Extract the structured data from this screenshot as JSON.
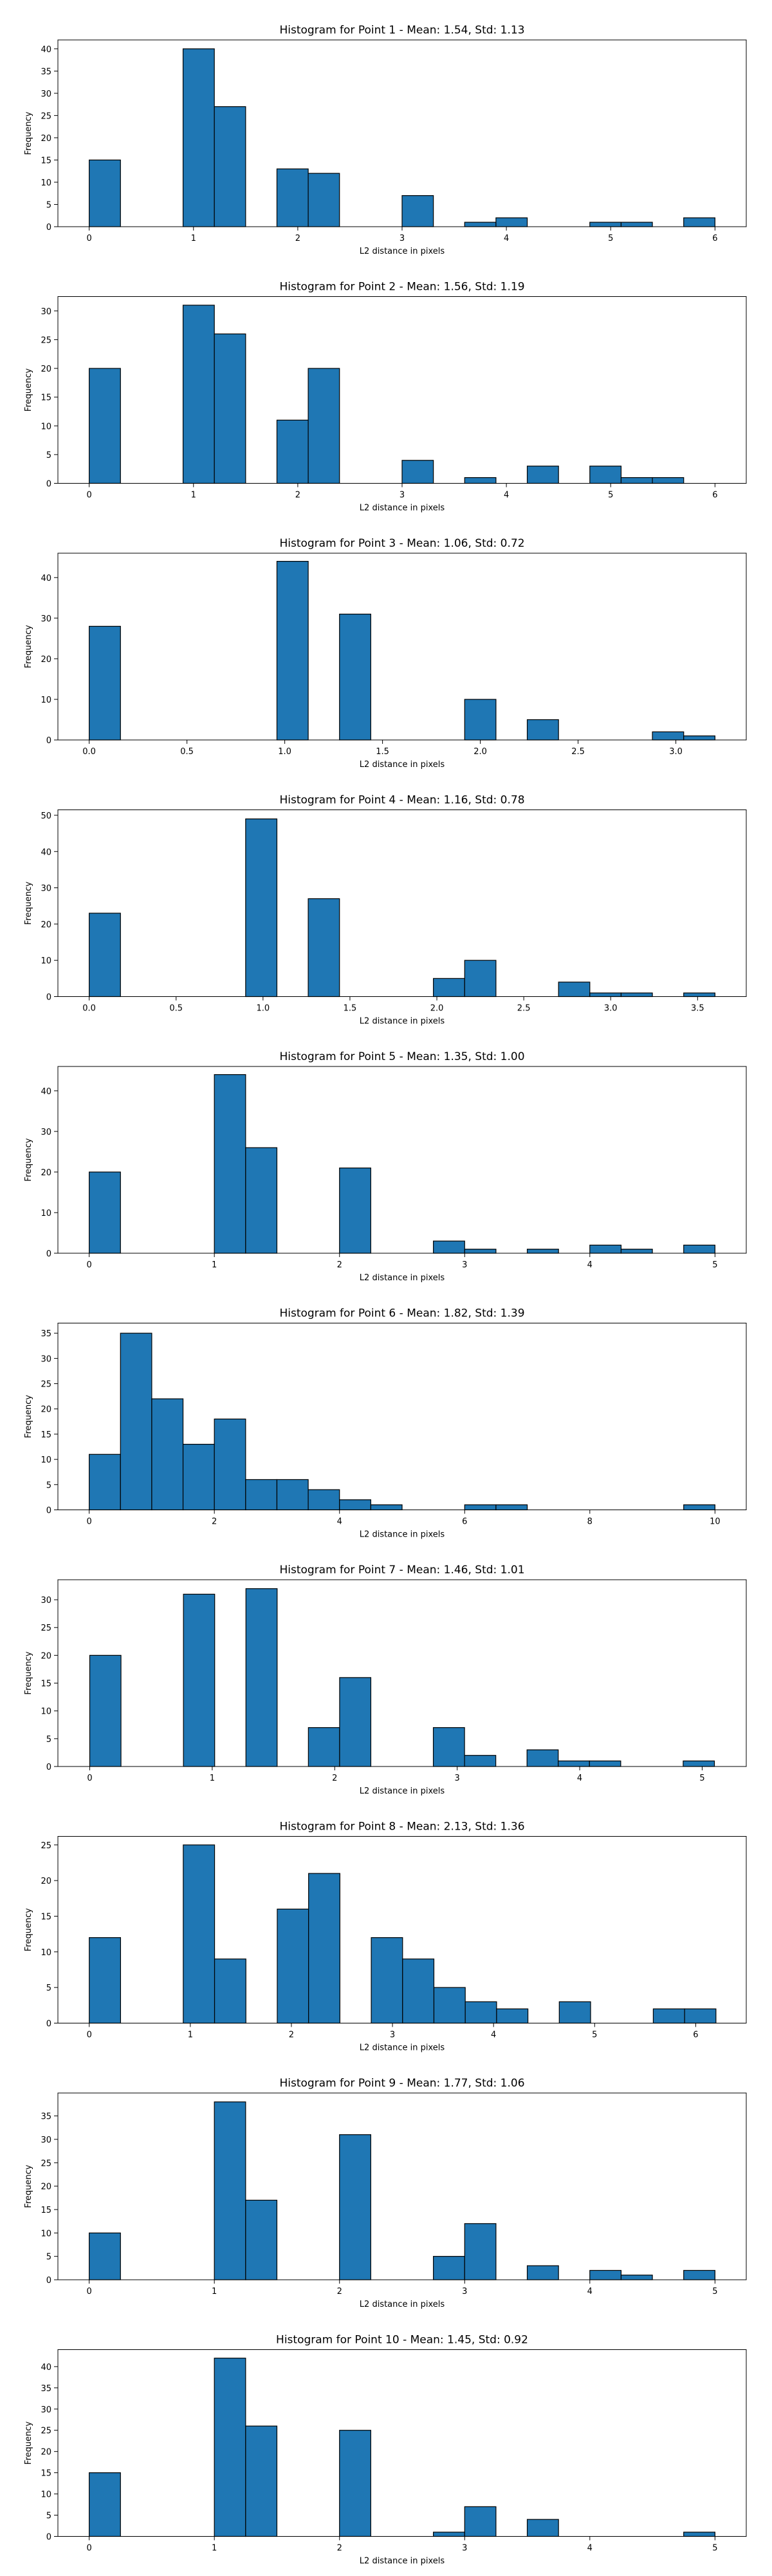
{
  "figure": {
    "xlabel": "L2 distance in pixels",
    "ylabel": "Frequency"
  },
  "chart_data": [
    {
      "type": "bar",
      "title": "Histogram for Point 1 - Mean: 1.54, Std: 1.13",
      "xlabel": "L2 distance in pixels",
      "ylabel": "Frequency",
      "xlim": [
        -0.3,
        6.3
      ],
      "ylim": [
        0,
        42
      ],
      "xticks": [
        0,
        1,
        2,
        3,
        4,
        5,
        6
      ],
      "xtick_labels": [
        "0",
        "1",
        "2",
        "3",
        "4",
        "5",
        "6"
      ],
      "yticks": [
        0,
        5,
        10,
        15,
        20,
        25,
        30,
        35,
        40
      ],
      "ytick_labels": [
        "0",
        "5",
        "10",
        "15",
        "20",
        "25",
        "30",
        "35",
        "40"
      ],
      "bins": [
        {
          "x0": 0,
          "x1": 0.3,
          "count": 15
        },
        {
          "x0": 0.9,
          "x1": 1.2,
          "count": 40
        },
        {
          "x0": 1.2,
          "x1": 1.5,
          "count": 27
        },
        {
          "x0": 1.8,
          "x1": 2.1,
          "count": 13
        },
        {
          "x0": 2.1,
          "x1": 2.4,
          "count": 12
        },
        {
          "x0": 3.0,
          "x1": 3.3,
          "count": 7
        },
        {
          "x0": 3.6,
          "x1": 3.9,
          "count": 1
        },
        {
          "x0": 3.9,
          "x1": 4.2,
          "count": 2
        },
        {
          "x0": 4.8,
          "x1": 5.1,
          "count": 1
        },
        {
          "x0": 5.1,
          "x1": 5.4,
          "count": 1
        },
        {
          "x0": 5.7,
          "x1": 6.0,
          "count": 2
        }
      ]
    },
    {
      "type": "bar",
      "title": "Histogram for Point 2 - Mean: 1.56, Std: 1.19",
      "xlabel": "L2 distance in pixels",
      "ylabel": "Frequency",
      "xlim": [
        -0.3,
        6.3
      ],
      "ylim": [
        0,
        32.5
      ],
      "xticks": [
        0,
        1,
        2,
        3,
        4,
        5,
        6
      ],
      "xtick_labels": [
        "0",
        "1",
        "2",
        "3",
        "4",
        "5",
        "6"
      ],
      "yticks": [
        0,
        5,
        10,
        15,
        20,
        25,
        30
      ],
      "ytick_labels": [
        "0",
        "5",
        "10",
        "15",
        "20",
        "25",
        "30"
      ],
      "bins": [
        {
          "x0": 0,
          "x1": 0.3,
          "count": 20
        },
        {
          "x0": 0.9,
          "x1": 1.2,
          "count": 31
        },
        {
          "x0": 1.2,
          "x1": 1.5,
          "count": 26
        },
        {
          "x0": 1.8,
          "x1": 2.1,
          "count": 11
        },
        {
          "x0": 2.1,
          "x1": 2.4,
          "count": 20
        },
        {
          "x0": 3.0,
          "x1": 3.3,
          "count": 4
        },
        {
          "x0": 3.6,
          "x1": 3.9,
          "count": 1
        },
        {
          "x0": 4.2,
          "x1": 4.5,
          "count": 3
        },
        {
          "x0": 4.8,
          "x1": 5.1,
          "count": 3
        },
        {
          "x0": 5.1,
          "x1": 5.4,
          "count": 1
        },
        {
          "x0": 5.4,
          "x1": 5.7,
          "count": 1
        }
      ]
    },
    {
      "type": "bar",
      "title": "Histogram for Point 3 - Mean: 1.06, Std: 0.72",
      "xlabel": "L2 distance in pixels",
      "ylabel": "Frequency",
      "xlim": [
        -0.16,
        3.36
      ],
      "ylim": [
        0,
        46
      ],
      "xticks": [
        0,
        0.5,
        1.0,
        1.5,
        2.0,
        2.5,
        3.0
      ],
      "xtick_labels": [
        "0.0",
        "0.5",
        "1.0",
        "1.5",
        "2.0",
        "2.5",
        "3.0"
      ],
      "yticks": [
        0,
        10,
        20,
        30,
        40
      ],
      "ytick_labels": [
        "0",
        "10",
        "20",
        "30",
        "40"
      ],
      "bins": [
        {
          "x0": 0,
          "x1": 0.16,
          "count": 28
        },
        {
          "x0": 0.96,
          "x1": 1.12,
          "count": 44
        },
        {
          "x0": 1.28,
          "x1": 1.44,
          "count": 31
        },
        {
          "x0": 1.92,
          "x1": 2.08,
          "count": 10
        },
        {
          "x0": 2.24,
          "x1": 2.4,
          "count": 5
        },
        {
          "x0": 2.88,
          "x1": 3.04,
          "count": 2
        },
        {
          "x0": 3.04,
          "x1": 3.2,
          "count": 1
        }
      ]
    },
    {
      "type": "bar",
      "title": "Histogram for Point 4 - Mean: 1.16, Std: 0.78",
      "xlabel": "L2 distance in pixels",
      "ylabel": "Frequency",
      "xlim": [
        -0.18,
        3.78
      ],
      "ylim": [
        0,
        51.5
      ],
      "xticks": [
        0,
        0.5,
        1.0,
        1.5,
        2.0,
        2.5,
        3.0,
        3.5
      ],
      "xtick_labels": [
        "0.0",
        "0.5",
        "1.0",
        "1.5",
        "2.0",
        "2.5",
        "3.0",
        "3.5"
      ],
      "yticks": [
        0,
        10,
        20,
        30,
        40,
        50
      ],
      "ytick_labels": [
        "0",
        "10",
        "20",
        "30",
        "40",
        "50"
      ],
      "bins": [
        {
          "x0": 0,
          "x1": 0.18,
          "count": 23
        },
        {
          "x0": 0.9,
          "x1": 1.08,
          "count": 49
        },
        {
          "x0": 1.26,
          "x1": 1.44,
          "count": 27
        },
        {
          "x0": 1.98,
          "x1": 2.16,
          "count": 5
        },
        {
          "x0": 2.16,
          "x1": 2.34,
          "count": 10
        },
        {
          "x0": 2.7,
          "x1": 2.88,
          "count": 4
        },
        {
          "x0": 2.88,
          "x1": 3.06,
          "count": 1
        },
        {
          "x0": 3.06,
          "x1": 3.24,
          "count": 1
        },
        {
          "x0": 3.42,
          "x1": 3.6,
          "count": 1
        }
      ]
    },
    {
      "type": "bar",
      "title": "Histogram for Point 5 - Mean: 1.35, Std: 1.00",
      "xlabel": "L2 distance in pixels",
      "ylabel": "Frequency",
      "xlim": [
        -0.25,
        5.25
      ],
      "ylim": [
        0,
        46
      ],
      "xticks": [
        0,
        1,
        2,
        3,
        4,
        5
      ],
      "xtick_labels": [
        "0",
        "1",
        "2",
        "3",
        "4",
        "5"
      ],
      "yticks": [
        0,
        10,
        20,
        30,
        40
      ],
      "ytick_labels": [
        "0",
        "10",
        "20",
        "30",
        "40"
      ],
      "bins": [
        {
          "x0": 0,
          "x1": 0.25,
          "count": 20
        },
        {
          "x0": 1.0,
          "x1": 1.25,
          "count": 44
        },
        {
          "x0": 1.25,
          "x1": 1.5,
          "count": 26
        },
        {
          "x0": 2.0,
          "x1": 2.25,
          "count": 21
        },
        {
          "x0": 2.75,
          "x1": 3.0,
          "count": 3
        },
        {
          "x0": 3.0,
          "x1": 3.25,
          "count": 1
        },
        {
          "x0": 3.5,
          "x1": 3.75,
          "count": 1
        },
        {
          "x0": 4.0,
          "x1": 4.25,
          "count": 2
        },
        {
          "x0": 4.25,
          "x1": 4.5,
          "count": 1
        },
        {
          "x0": 4.75,
          "x1": 5.0,
          "count": 2
        }
      ]
    },
    {
      "type": "bar",
      "title": "Histogram for Point 6 - Mean: 1.82, Std: 1.39",
      "xlabel": "L2 distance in pixels",
      "ylabel": "Frequency",
      "xlim": [
        -0.5,
        10.5
      ],
      "ylim": [
        0,
        37
      ],
      "xticks": [
        0,
        2,
        4,
        6,
        8,
        10
      ],
      "xtick_labels": [
        "0",
        "2",
        "4",
        "6",
        "8",
        "10"
      ],
      "yticks": [
        0,
        5,
        10,
        15,
        20,
        25,
        30,
        35
      ],
      "ytick_labels": [
        "0",
        "5",
        "10",
        "15",
        "20",
        "25",
        "30",
        "35"
      ],
      "bins": [
        {
          "x0": 0,
          "x1": 0.5,
          "count": 11
        },
        {
          "x0": 0.5,
          "x1": 1.0,
          "count": 35
        },
        {
          "x0": 1.0,
          "x1": 1.5,
          "count": 22
        },
        {
          "x0": 1.5,
          "x1": 2.0,
          "count": 13
        },
        {
          "x0": 2.0,
          "x1": 2.5,
          "count": 18
        },
        {
          "x0": 2.5,
          "x1": 3.0,
          "count": 6
        },
        {
          "x0": 3.0,
          "x1": 3.5,
          "count": 6
        },
        {
          "x0": 3.5,
          "x1": 4.0,
          "count": 4
        },
        {
          "x0": 4.0,
          "x1": 4.5,
          "count": 2
        },
        {
          "x0": 4.5,
          "x1": 5.0,
          "count": 1
        },
        {
          "x0": 6.0,
          "x1": 6.5,
          "count": 1
        },
        {
          "x0": 6.5,
          "x1": 7.0,
          "count": 1
        },
        {
          "x0": 9.5,
          "x1": 10.0,
          "count": 1
        }
      ]
    },
    {
      "type": "bar",
      "title": "Histogram for Point 7 - Mean: 1.46, Std: 1.01",
      "xlabel": "L2 distance in pixels",
      "ylabel": "Frequency",
      "xlim": [
        -0.26,
        5.36
      ],
      "ylim": [
        0,
        33.6
      ],
      "xticks": [
        0,
        1,
        2,
        3,
        4,
        5
      ],
      "xtick_labels": [
        "0",
        "1",
        "2",
        "3",
        "4",
        "5"
      ],
      "yticks": [
        0,
        5,
        10,
        15,
        20,
        25,
        30
      ],
      "ytick_labels": [
        "0",
        "5",
        "10",
        "15",
        "20",
        "25",
        "30"
      ],
      "bins": [
        {
          "x0": 0,
          "x1": 0.255,
          "count": 20
        },
        {
          "x0": 0.765,
          "x1": 1.02,
          "count": 31
        },
        {
          "x0": 1.275,
          "x1": 1.53,
          "count": 32
        },
        {
          "x0": 1.785,
          "x1": 2.04,
          "count": 7
        },
        {
          "x0": 2.04,
          "x1": 2.295,
          "count": 16
        },
        {
          "x0": 2.805,
          "x1": 3.06,
          "count": 7
        },
        {
          "x0": 3.06,
          "x1": 3.315,
          "count": 2
        },
        {
          "x0": 3.57,
          "x1": 3.825,
          "count": 3
        },
        {
          "x0": 3.825,
          "x1": 4.08,
          "count": 1
        },
        {
          "x0": 4.08,
          "x1": 4.335,
          "count": 1
        },
        {
          "x0": 4.845,
          "x1": 5.1,
          "count": 1
        }
      ]
    },
    {
      "type": "bar",
      "title": "Histogram for Point 8 - Mean: 2.13, Std: 1.36",
      "xlabel": "L2 distance in pixels",
      "ylabel": "Frequency",
      "xlim": [
        -0.31,
        6.5
      ],
      "ylim": [
        0,
        26.2
      ],
      "xticks": [
        0,
        1,
        2,
        3,
        4,
        5,
        6
      ],
      "xtick_labels": [
        "0",
        "1",
        "2",
        "3",
        "4",
        "5",
        "6"
      ],
      "yticks": [
        0,
        5,
        10,
        15,
        20,
        25
      ],
      "ytick_labels": [
        "0",
        "5",
        "10",
        "15",
        "20",
        "25"
      ],
      "bins": [
        {
          "x0": 0,
          "x1": 0.31,
          "count": 12
        },
        {
          "x0": 0.93,
          "x1": 1.24,
          "count": 25
        },
        {
          "x0": 1.24,
          "x1": 1.55,
          "count": 9
        },
        {
          "x0": 1.86,
          "x1": 2.17,
          "count": 16
        },
        {
          "x0": 2.17,
          "x1": 2.48,
          "count": 21
        },
        {
          "x0": 2.79,
          "x1": 3.1,
          "count": 12
        },
        {
          "x0": 3.1,
          "x1": 3.41,
          "count": 9
        },
        {
          "x0": 3.41,
          "x1": 3.72,
          "count": 5
        },
        {
          "x0": 3.72,
          "x1": 4.03,
          "count": 3
        },
        {
          "x0": 4.03,
          "x1": 4.34,
          "count": 2
        },
        {
          "x0": 4.65,
          "x1": 4.96,
          "count": 3
        },
        {
          "x0": 5.58,
          "x1": 5.89,
          "count": 2
        },
        {
          "x0": 5.89,
          "x1": 6.2,
          "count": 2
        }
      ]
    },
    {
      "type": "bar",
      "title": "Histogram for Point 9 - Mean: 1.77, Std: 1.06",
      "xlabel": "L2 distance in pixels",
      "ylabel": "Frequency",
      "xlim": [
        -0.25,
        5.25
      ],
      "ylim": [
        0,
        39.9
      ],
      "xticks": [
        0,
        1,
        2,
        3,
        4,
        5
      ],
      "xtick_labels": [
        "0",
        "1",
        "2",
        "3",
        "4",
        "5"
      ],
      "yticks": [
        0,
        5,
        10,
        15,
        20,
        25,
        30,
        35
      ],
      "ytick_labels": [
        "0",
        "5",
        "10",
        "15",
        "20",
        "25",
        "30",
        "35"
      ],
      "bins": [
        {
          "x0": 0,
          "x1": 0.25,
          "count": 10
        },
        {
          "x0": 1.0,
          "x1": 1.25,
          "count": 38
        },
        {
          "x0": 1.25,
          "x1": 1.5,
          "count": 17
        },
        {
          "x0": 2.0,
          "x1": 2.25,
          "count": 31
        },
        {
          "x0": 2.75,
          "x1": 3.0,
          "count": 5
        },
        {
          "x0": 3.0,
          "x1": 3.25,
          "count": 12
        },
        {
          "x0": 3.5,
          "x1": 3.75,
          "count": 3
        },
        {
          "x0": 4.0,
          "x1": 4.25,
          "count": 2
        },
        {
          "x0": 4.25,
          "x1": 4.5,
          "count": 1
        },
        {
          "x0": 4.75,
          "x1": 5.0,
          "count": 2
        }
      ]
    },
    {
      "type": "bar",
      "title": "Histogram for Point 10 - Mean: 1.45, Std: 0.92",
      "xlabel": "L2 distance in pixels",
      "ylabel": "Frequency",
      "xlim": [
        -0.25,
        5.25
      ],
      "ylim": [
        0,
        44
      ],
      "xticks": [
        0,
        1,
        2,
        3,
        4,
        5
      ],
      "xtick_labels": [
        "0",
        "1",
        "2",
        "3",
        "4",
        "5"
      ],
      "yticks": [
        0,
        5,
        10,
        15,
        20,
        25,
        30,
        35,
        40
      ],
      "ytick_labels": [
        "0",
        "5",
        "10",
        "15",
        "20",
        "25",
        "30",
        "35",
        "40"
      ],
      "bins": [
        {
          "x0": 0,
          "x1": 0.25,
          "count": 15
        },
        {
          "x0": 1.0,
          "x1": 1.25,
          "count": 42
        },
        {
          "x0": 1.25,
          "x1": 1.5,
          "count": 26
        },
        {
          "x0": 2.0,
          "x1": 2.25,
          "count": 25
        },
        {
          "x0": 2.75,
          "x1": 3.0,
          "count": 1
        },
        {
          "x0": 3.0,
          "x1": 3.25,
          "count": 7
        },
        {
          "x0": 3.5,
          "x1": 3.75,
          "count": 4
        },
        {
          "x0": 4.75,
          "x1": 5.0,
          "count": 1
        }
      ]
    }
  ]
}
